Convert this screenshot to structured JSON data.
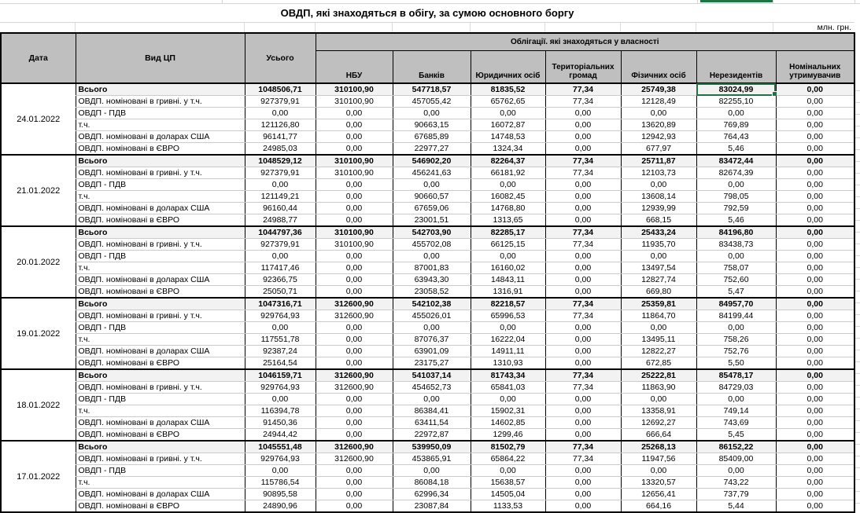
{
  "meta": {
    "title": "ОВДП, які знаходяться в обігу, за сумою основного боргу",
    "unit_label": "млн. грн."
  },
  "colors": {
    "selection_green": "#217346",
    "header_bg": "#bfbfbf",
    "total_row_bg": "#f2f2f2"
  },
  "table": {
    "group_header": "Облігації. які знаходяться у власності",
    "columns": {
      "date": "Дата",
      "type": "Вид ЦП",
      "total": "Усього",
      "owners": [
        "НБУ",
        "Банків",
        "Юридичних осіб",
        "Територіальних громад",
        "Фізичних осіб",
        "Нерезидентів",
        "Номінальних утримувачив"
      ]
    },
    "row_labels": [
      "Всього",
      "ОВДП. номіновані в гривні. у т.ч.",
      "ОВДП - ПДВ",
      "т.ч.",
      "ОВДП. номіновані в доларах США",
      "ОВДП. номіновані в ЄВРО"
    ],
    "selection": {
      "block_index": 0,
      "row_index": 0,
      "value_index": 6
    },
    "blocks": [
      {
        "date": "24.01.2022",
        "rows": [
          [
            "1048506,71",
            "310100,90",
            "547718,57",
            "81835,52",
            "77,34",
            "25749,38",
            "83024,99",
            "0,00"
          ],
          [
            "927379,91",
            "310100,90",
            "457055,42",
            "65762,65",
            "77,34",
            "12128,49",
            "82255,10",
            "0,00"
          ],
          [
            "0,00",
            "0,00",
            "0,00",
            "0,00",
            "0,00",
            "0,00",
            "0,00",
            "0,00"
          ],
          [
            "121126,80",
            "0,00",
            "90663,15",
            "16072,87",
            "0,00",
            "13620,89",
            "769,89",
            "0,00"
          ],
          [
            "96141,77",
            "0,00",
            "67685,89",
            "14748,53",
            "0,00",
            "12942,93",
            "764,43",
            "0,00"
          ],
          [
            "24985,03",
            "0,00",
            "22977,27",
            "1324,34",
            "0,00",
            "677,97",
            "5,46",
            "0,00"
          ]
        ]
      },
      {
        "date": "21.01.2022",
        "rows": [
          [
            "1048529,12",
            "310100,90",
            "546902,20",
            "82264,37",
            "77,34",
            "25711,87",
            "83472,44",
            "0,00"
          ],
          [
            "927379,91",
            "310100,90",
            "456241,63",
            "66181,92",
            "77,34",
            "12103,73",
            "82674,39",
            "0,00"
          ],
          [
            "0,00",
            "0,00",
            "0,00",
            "0,00",
            "0,00",
            "0,00",
            "0,00",
            "0,00"
          ],
          [
            "121149,21",
            "0,00",
            "90660,57",
            "16082,45",
            "0,00",
            "13608,14",
            "798,05",
            "0,00"
          ],
          [
            "96160,44",
            "0,00",
            "67659,06",
            "14768,80",
            "0,00",
            "12939,99",
            "792,59",
            "0,00"
          ],
          [
            "24988,77",
            "0,00",
            "23001,51",
            "1313,65",
            "0,00",
            "668,15",
            "5,46",
            "0,00"
          ]
        ]
      },
      {
        "date": "20.01.2022",
        "rows": [
          [
            "1044797,36",
            "310100,90",
            "542703,90",
            "82285,17",
            "77,34",
            "25433,24",
            "84196,80",
            "0,00"
          ],
          [
            "927379,91",
            "310100,90",
            "455702,08",
            "66125,15",
            "77,34",
            "11935,70",
            "83438,73",
            "0,00"
          ],
          [
            "0,00",
            "0,00",
            "0,00",
            "0,00",
            "0,00",
            "0,00",
            "0,00",
            "0,00"
          ],
          [
            "117417,46",
            "0,00",
            "87001,83",
            "16160,02",
            "0,00",
            "13497,54",
            "758,07",
            "0,00"
          ],
          [
            "92366,75",
            "0,00",
            "63943,30",
            "14843,11",
            "0,00",
            "12827,74",
            "752,60",
            "0,00"
          ],
          [
            "25050,71",
            "0,00",
            "23058,52",
            "1316,91",
            "0,00",
            "669,80",
            "5,47",
            "0,00"
          ]
        ]
      },
      {
        "date": "19.01.2022",
        "rows": [
          [
            "1047316,71",
            "312600,90",
            "542102,38",
            "82218,57",
            "77,34",
            "25359,81",
            "84957,70",
            "0,00"
          ],
          [
            "929764,93",
            "312600,90",
            "455026,01",
            "65996,53",
            "77,34",
            "11864,70",
            "84199,44",
            "0,00"
          ],
          [
            "0,00",
            "0,00",
            "0,00",
            "0,00",
            "0,00",
            "0,00",
            "0,00",
            "0,00"
          ],
          [
            "117551,78",
            "0,00",
            "87076,37",
            "16222,04",
            "0,00",
            "13495,11",
            "758,26",
            "0,00"
          ],
          [
            "92387,24",
            "0,00",
            "63901,09",
            "14911,11",
            "0,00",
            "12822,27",
            "752,76",
            "0,00"
          ],
          [
            "25164,54",
            "0,00",
            "23175,27",
            "1310,93",
            "0,00",
            "672,85",
            "5,50",
            "0,00"
          ]
        ]
      },
      {
        "date": "18.01.2022",
        "rows": [
          [
            "1046159,71",
            "312600,90",
            "541037,14",
            "81743,34",
            "77,34",
            "25222,81",
            "85478,17",
            "0,00"
          ],
          [
            "929764,93",
            "312600,90",
            "454652,73",
            "65841,03",
            "77,34",
            "11863,90",
            "84729,03",
            "0,00"
          ],
          [
            "0,00",
            "0,00",
            "0,00",
            "0,00",
            "0,00",
            "0,00",
            "0,00",
            "0,00"
          ],
          [
            "116394,78",
            "0,00",
            "86384,41",
            "15902,31",
            "0,00",
            "13358,91",
            "749,14",
            "0,00"
          ],
          [
            "91450,36",
            "0,00",
            "63411,54",
            "14602,85",
            "0,00",
            "12692,27",
            "743,69",
            "0,00"
          ],
          [
            "24944,42",
            "0,00",
            "22972,87",
            "1299,46",
            "0,00",
            "666,64",
            "5,45",
            "0,00"
          ]
        ]
      },
      {
        "date": "17.01.2022",
        "rows": [
          [
            "1045551,48",
            "312600,90",
            "539950,09",
            "81502,79",
            "77,34",
            "25268,13",
            "86152,22",
            "0,00"
          ],
          [
            "929764,93",
            "312600,90",
            "453865,91",
            "65864,22",
            "77,34",
            "11947,56",
            "85409,00",
            "0,00"
          ],
          [
            "0,00",
            "0,00",
            "0,00",
            "0,00",
            "0,00",
            "0,00",
            "0,00",
            "0,00"
          ],
          [
            "115786,54",
            "0,00",
            "86084,18",
            "15638,57",
            "0,00",
            "13320,57",
            "743,22",
            "0,00"
          ],
          [
            "90895,58",
            "0,00",
            "62996,34",
            "14505,04",
            "0,00",
            "12656,41",
            "737,79",
            "0,00"
          ],
          [
            "24890,96",
            "0,00",
            "23087,84",
            "1133,53",
            "0,00",
            "664,16",
            "5,44",
            "0,00"
          ]
        ]
      }
    ]
  }
}
